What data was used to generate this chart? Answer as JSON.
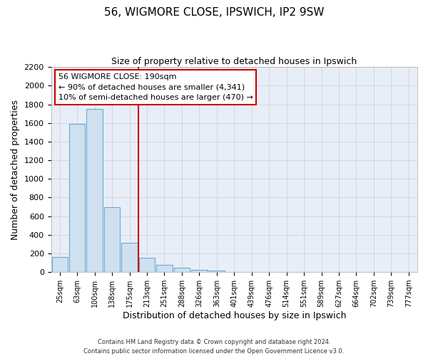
{
  "title": "56, WIGMORE CLOSE, IPSWICH, IP2 9SW",
  "subtitle": "Size of property relative to detached houses in Ipswich",
  "xlabel": "Distribution of detached houses by size in Ipswich",
  "ylabel": "Number of detached properties",
  "bin_labels": [
    "25sqm",
    "63sqm",
    "100sqm",
    "138sqm",
    "175sqm",
    "213sqm",
    "251sqm",
    "288sqm",
    "326sqm",
    "363sqm",
    "401sqm",
    "439sqm",
    "476sqm",
    "514sqm",
    "551sqm",
    "589sqm",
    "627sqm",
    "664sqm",
    "702sqm",
    "739sqm",
    "777sqm"
  ],
  "bin_values": [
    160,
    1590,
    1750,
    700,
    315,
    155,
    80,
    45,
    25,
    15,
    0,
    0,
    0,
    0,
    0,
    0,
    0,
    0,
    0,
    0,
    0
  ],
  "bar_color": "#cfe0f0",
  "bar_edge_color": "#6aaad4",
  "grid_color": "#cccccc",
  "background_color": "#e8eef8",
  "vline_x": 4.5,
  "vline_color": "#cc0000",
  "annotation_title": "56 WIGMORE CLOSE: 190sqm",
  "annotation_line1": "← 90% of detached houses are smaller (4,341)",
  "annotation_line2": "10% of semi-detached houses are larger (470) →",
  "annotation_box_color": "#ffffff",
  "annotation_border_color": "#cc0000",
  "footer_line1": "Contains HM Land Registry data © Crown copyright and database right 2024.",
  "footer_line2": "Contains public sector information licensed under the Open Government Licence v3.0.",
  "ylim": [
    0,
    2200
  ],
  "yticks": [
    0,
    200,
    400,
    600,
    800,
    1000,
    1200,
    1400,
    1600,
    1800,
    2000,
    2200
  ]
}
